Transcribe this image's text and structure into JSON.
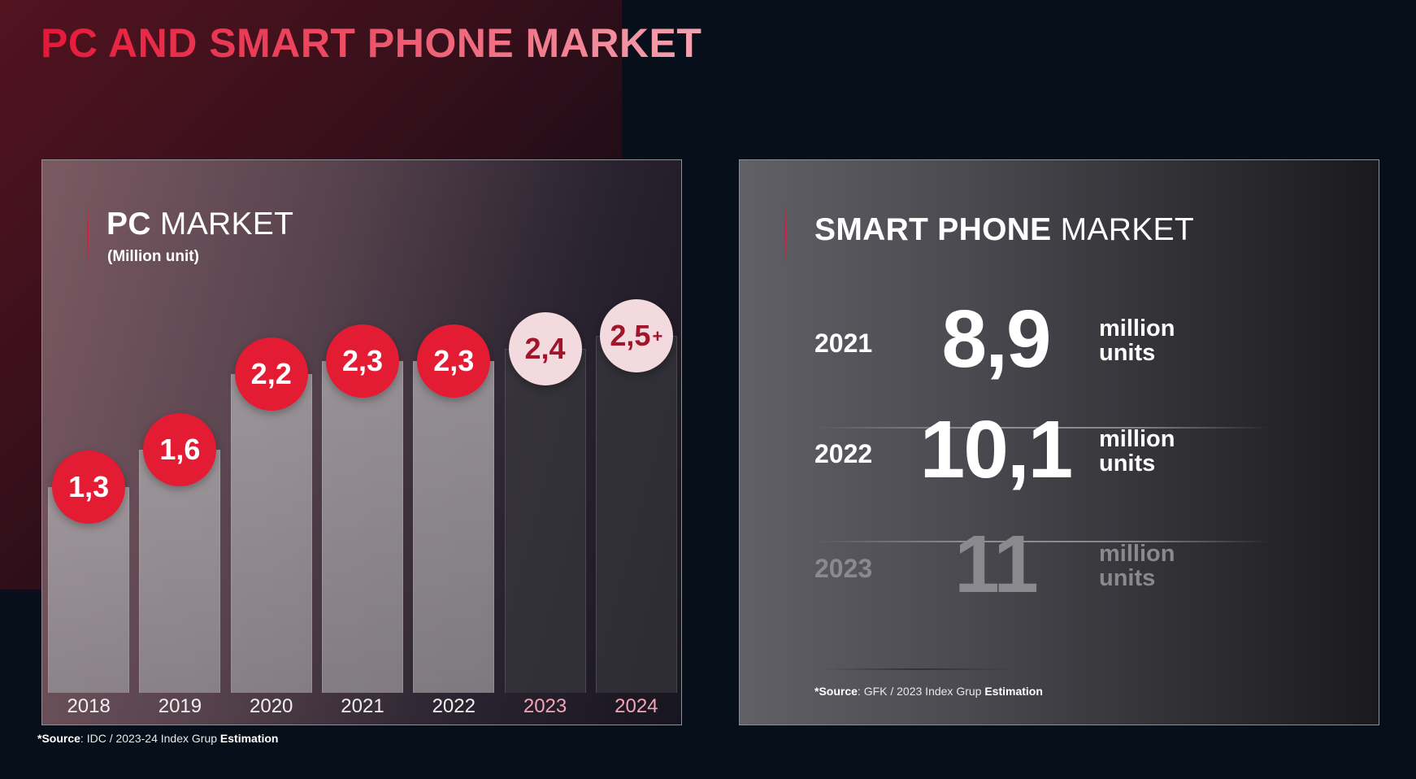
{
  "page": {
    "title": "PC AND SMART PHONE MARKET"
  },
  "pc_panel": {
    "title_bold": "PC",
    "title_rest": "MARKET",
    "subtitle": "(Million unit)",
    "source_prefix": "*Source",
    "source_mid": ": IDC / 2023-24 Index Grup ",
    "source_suffix": "Estimation"
  },
  "phone_panel": {
    "title_bold": "SMART PHONE",
    "title_rest": "MARKET",
    "source_prefix": "*Source",
    "source_mid": ": GFK / 2023 Index Grup ",
    "source_suffix": "Estimation",
    "rows": [
      {
        "year": "2021",
        "value": "8,9",
        "unit_line1": "million",
        "unit_line2": "units",
        "emphasis": "current"
      },
      {
        "year": "2022",
        "value": "10,1",
        "unit_line1": "million",
        "unit_line2": "units",
        "emphasis": "current"
      },
      {
        "year": "2023",
        "value": "11",
        "unit_line1": "million",
        "unit_line2": "units",
        "emphasis": "estimate"
      }
    ]
  },
  "chart_data": {
    "type": "bar",
    "title": "PC MARKET",
    "subtitle": "(Million unit)",
    "xlabel": "",
    "ylabel": "",
    "categories": [
      "2018",
      "2019",
      "2020",
      "2021",
      "2022",
      "2023",
      "2024"
    ],
    "values": [
      1.3,
      1.6,
      2.2,
      2.3,
      2.3,
      2.4,
      2.5
    ],
    "value_labels": [
      "1,3",
      "1,6",
      "2,2",
      "2,3",
      "2,3",
      "2,4",
      "2,5"
    ],
    "value_suffixes": [
      "",
      "",
      "",
      "",
      "",
      "",
      "+"
    ],
    "estimated": [
      false,
      false,
      false,
      false,
      false,
      true,
      true
    ],
    "ylim": [
      0,
      2.6
    ],
    "grid": false,
    "legend": "none",
    "source": "*Source: IDC / 2023-24 Index Grup Estimation",
    "colors": {
      "bubble_actual": "#e31b33",
      "bubble_estimate": "#f2dade",
      "bubble_estimate_text": "#a11429",
      "year_estimate_text": "#f4a4b4"
    }
  }
}
